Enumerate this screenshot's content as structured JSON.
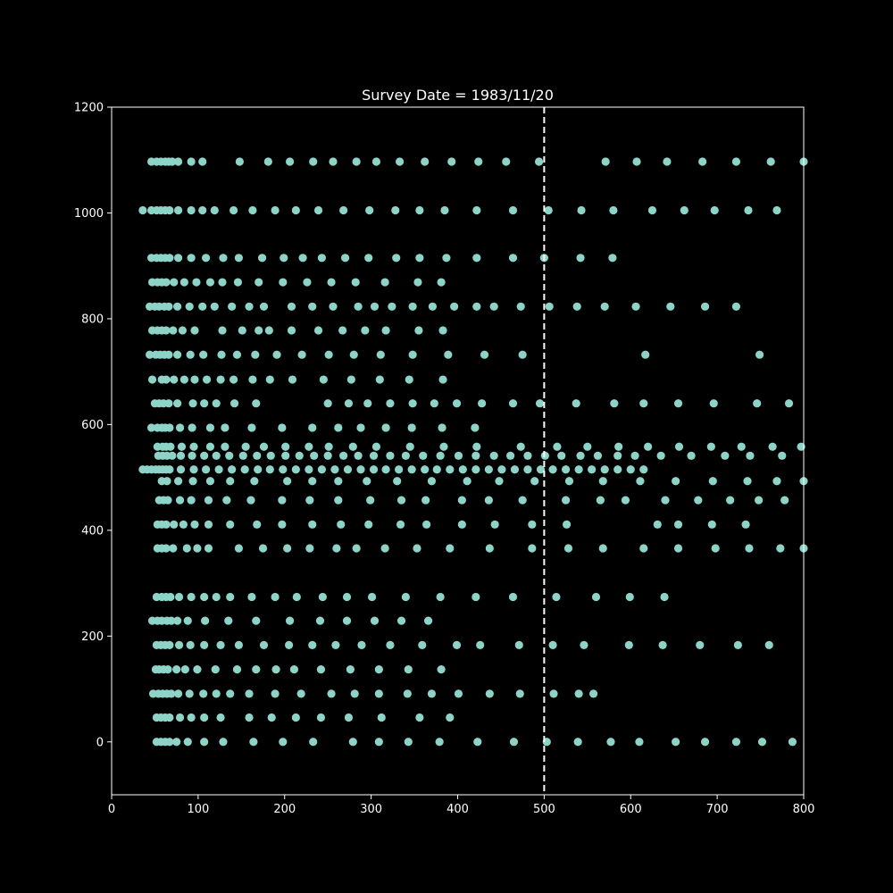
{
  "chart_data": {
    "type": "scatter",
    "title": "Survey Date = 1983/11/20",
    "xlabel": "",
    "ylabel": "",
    "xlim": [
      0,
      800
    ],
    "ylim": [
      -100,
      1200
    ],
    "xticks": [
      0,
      100,
      200,
      300,
      400,
      500,
      600,
      700,
      800
    ],
    "yticks": [
      0,
      200,
      400,
      600,
      800,
      1000,
      1200
    ],
    "grid": false,
    "vline": 500,
    "colors": {
      "background": "#000000",
      "axes": "#ffffff",
      "point": "#8dd3c7",
      "vline": "#ffffff"
    },
    "rows": [
      {
        "y": 1097,
        "x": [
          46,
          52,
          57,
          62,
          66,
          70,
          77,
          92,
          105,
          148,
          181,
          206,
          233,
          256,
          283,
          306,
          333,
          362,
          393,
          424,
          456,
          494,
          571,
          607,
          642,
          683,
          722,
          762,
          800
        ]
      },
      {
        "y": 1005,
        "x": [
          36,
          46,
          52,
          57,
          62,
          67,
          77,
          92,
          105,
          119,
          141,
          163,
          189,
          213,
          239,
          268,
          298,
          328,
          356,
          385,
          422,
          464,
          505,
          543,
          580,
          625,
          662,
          697,
          736,
          769
        ]
      },
      {
        "y": 915,
        "x": [
          46,
          52,
          57,
          62,
          67,
          77,
          92,
          109,
          129,
          147,
          174,
          199,
          221,
          243,
          270,
          297,
          329,
          356,
          387,
          422,
          464,
          500,
          542,
          579
        ]
      },
      {
        "y": 869,
        "x": [
          47,
          53,
          58,
          63,
          72,
          84,
          98,
          114,
          128,
          146,
          170,
          198,
          226,
          254,
          282,
          316,
          354,
          381
        ]
      },
      {
        "y": 823,
        "x": [
          44,
          50,
          55,
          61,
          66,
          76,
          90,
          105,
          119,
          139,
          159,
          176,
          208,
          232,
          256,
          285,
          304,
          324,
          348,
          371,
          396,
          422,
          442,
          473,
          506,
          538,
          570,
          606,
          646,
          686,
          722
        ]
      },
      {
        "y": 778,
        "x": [
          47,
          53,
          58,
          63,
          71,
          82,
          96,
          128,
          151,
          170,
          182,
          208,
          239,
          267,
          293,
          317,
          355,
          383
        ]
      },
      {
        "y": 732,
        "x": [
          44,
          51,
          56,
          61,
          66,
          76,
          91,
          106,
          127,
          145,
          166,
          191,
          220,
          251,
          280,
          311,
          348,
          389,
          431,
          475,
          617,
          749
        ]
      },
      {
        "y": 685,
        "x": [
          47,
          58,
          63,
          72,
          84,
          96,
          110,
          126,
          141,
          163,
          183,
          209,
          245,
          277,
          310,
          344,
          383
        ]
      },
      {
        "y": 640,
        "x": [
          50,
          55,
          60,
          66,
          76,
          94,
          107,
          121,
          142,
          167,
          250,
          274,
          296,
          322,
          348,
          373,
          399,
          428,
          464,
          495,
          537,
          581,
          615,
          655,
          696,
          746,
          783
        ]
      },
      {
        "y": 594,
        "x": [
          46,
          53,
          58,
          62,
          67,
          79,
          93,
          114,
          131,
          162,
          197,
          232,
          262,
          288,
          317,
          347,
          382,
          420
        ]
      },
      {
        "y": 558,
        "x": [
          53,
          59,
          63,
          68,
          81,
          95,
          114,
          131,
          155,
          176,
          201,
          228,
          251,
          279,
          306,
          345,
          384,
          422,
          473,
          515,
          550,
          586,
          620,
          656,
          693,
          728,
          764,
          797
        ]
      },
      {
        "y": 541,
        "x": [
          54,
          59,
          64,
          70,
          80,
          93,
          107,
          121,
          136,
          152,
          168,
          184,
          201,
          217,
          234,
          250,
          268,
          285,
          303,
          322,
          340,
          360,
          380,
          401,
          421,
          442,
          461,
          481,
          501,
          520,
          542,
          562,
          585,
          605,
          635,
          670,
          709,
          738,
          775
        ]
      },
      {
        "y": 515,
        "x": [
          36,
          41,
          46,
          51,
          55,
          59,
          63,
          67,
          80,
          95,
          109,
          124,
          139,
          154,
          169,
          183,
          198,
          213,
          228,
          243,
          258,
          273,
          288,
          303,
          317,
          332,
          347,
          362,
          376,
          391,
          406,
          421,
          436,
          451,
          466,
          481,
          496,
          510,
          525,
          540,
          555,
          570,
          585,
          600,
          615
        ]
      },
      {
        "y": 493,
        "x": [
          58,
          64,
          77,
          94,
          114,
          137,
          165,
          203,
          232,
          262,
          295,
          330,
          370,
          411,
          448,
          489,
          529,
          568,
          611,
          652,
          695,
          735,
          769,
          800
        ]
      },
      {
        "y": 457,
        "x": [
          55,
          60,
          65,
          79,
          92,
          112,
          133,
          161,
          197,
          229,
          262,
          299,
          335,
          363,
          405,
          436,
          475,
          525,
          565,
          594,
          640,
          678,
          715,
          748,
          778
        ]
      },
      {
        "y": 411,
        "x": [
          53,
          58,
          63,
          72,
          83,
          96,
          112,
          137,
          168,
          197,
          232,
          265,
          297,
          334,
          364,
          405,
          443,
          486,
          526,
          631,
          655,
          694,
          733
        ]
      },
      {
        "y": 366,
        "x": [
          53,
          58,
          63,
          71,
          87,
          99,
          112,
          147,
          175,
          203,
          229,
          260,
          283,
          316,
          353,
          391,
          437,
          486,
          528,
          568,
          615,
          655,
          698,
          737,
          773,
          800
        ]
      },
      {
        "y": 274,
        "x": [
          52,
          58,
          63,
          68,
          78,
          92,
          107,
          121,
          137,
          162,
          189,
          214,
          244,
          272,
          301,
          340,
          380,
          421,
          464,
          514,
          560,
          599,
          639
        ]
      },
      {
        "y": 229,
        "x": [
          47,
          53,
          58,
          64,
          69,
          76,
          88,
          108,
          135,
          167,
          206,
          241,
          272,
          304,
          335,
          366
        ]
      },
      {
        "y": 183,
        "x": [
          52,
          57,
          62,
          67,
          78,
          91,
          107,
          126,
          147,
          176,
          205,
          232,
          259,
          289,
          322,
          359,
          399,
          426,
          471,
          510,
          546,
          598,
          637,
          680,
          724,
          760
        ]
      },
      {
        "y": 137,
        "x": [
          51,
          55,
          60,
          65,
          75,
          85,
          99,
          120,
          145,
          167,
          190,
          211,
          242,
          276,
          309,
          343,
          381
        ]
      },
      {
        "y": 91,
        "x": [
          48,
          54,
          59,
          64,
          69,
          77,
          90,
          106,
          121,
          137,
          159,
          189,
          219,
          254,
          281,
          309,
          342,
          370,
          401,
          437,
          472,
          511,
          540,
          557
        ]
      },
      {
        "y": 46,
        "x": [
          52,
          57,
          62,
          67,
          79,
          92,
          107,
          126,
          159,
          185,
          213,
          242,
          274,
          312,
          356,
          391
        ]
      },
      {
        "y": 0,
        "x": [
          52,
          57,
          62,
          67,
          75,
          88,
          107,
          129,
          164,
          198,
          233,
          279,
          309,
          343,
          379,
          423,
          465,
          503,
          539,
          577,
          610,
          652,
          686,
          722,
          752,
          787
        ]
      }
    ]
  }
}
